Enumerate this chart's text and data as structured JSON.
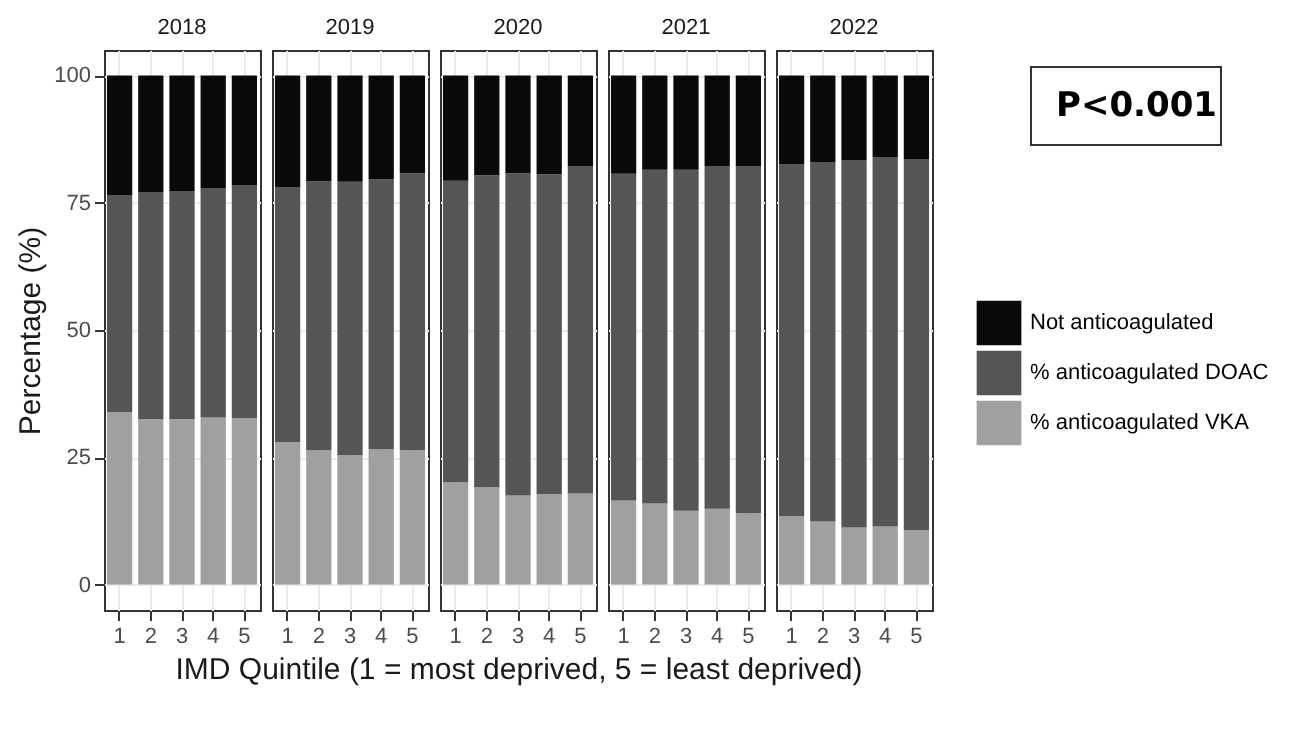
{
  "chart_data": [
    {
      "type": "bar",
      "title": "2018",
      "ylabel": "Percentage (%)",
      "stacked": true,
      "categories": [
        "1",
        "2",
        "3",
        "4",
        "5"
      ],
      "ylim": [
        -5,
        105
      ],
      "yticks": [
        0,
        25,
        50,
        75,
        100
      ],
      "grid": true,
      "legend": false,
      "series": [
        {
          "color": "#a0a0a0",
          "values": [
            33.9,
            32.5,
            32.5,
            32.8,
            32.7
          ]
        },
        {
          "color": "#555555",
          "values": [
            42.6,
            44.6,
            44.8,
            45.0,
            45.8
          ]
        },
        {
          "color": "#0a0a0a",
          "values": [
            23.5,
            22.9,
            22.7,
            22.2,
            21.5
          ]
        }
      ]
    },
    {
      "type": "bar",
      "title": "2019",
      "stacked": true,
      "categories": [
        "1",
        "2",
        "3",
        "4",
        "5"
      ],
      "ylim": [
        -5,
        105
      ],
      "yticks": [
        0,
        25,
        50,
        75,
        100
      ],
      "grid": true,
      "legend": false,
      "tick_labels": "x",
      "series": [
        {
          "color": "#a0a0a0",
          "values": [
            28.0,
            26.4,
            25.4,
            26.6,
            26.4
          ]
        },
        {
          "color": "#555555",
          "values": [
            50.0,
            52.8,
            53.7,
            53.0,
            54.4
          ]
        },
        {
          "color": "#0a0a0a",
          "values": [
            22.0,
            20.8,
            20.9,
            20.4,
            19.2
          ]
        }
      ]
    },
    {
      "type": "bar",
      "title": "2020",
      "xlabel": "IMD Quintile (1 = most deprived, 5 = least deprived)",
      "stacked": true,
      "categories": [
        "1",
        "2",
        "3",
        "4",
        "5"
      ],
      "ylim": [
        -5,
        105
      ],
      "yticks": [
        0,
        25,
        50,
        75,
        100
      ],
      "grid": true,
      "legend": false,
      "tick_labels": "x",
      "series": [
        {
          "color": "#a0a0a0",
          "values": [
            20.1,
            19.1,
            17.5,
            17.8,
            17.9
          ]
        },
        {
          "color": "#555555",
          "values": [
            59.2,
            61.3,
            63.3,
            62.8,
            64.3
          ]
        },
        {
          "color": "#0a0a0a",
          "values": [
            20.7,
            19.6,
            19.2,
            19.4,
            17.8
          ]
        }
      ]
    },
    {
      "type": "bar",
      "title": "2021",
      "stacked": true,
      "categories": [
        "1",
        "2",
        "3",
        "4",
        "5"
      ],
      "ylim": [
        -5,
        105
      ],
      "yticks": [
        0,
        25,
        50,
        75,
        100
      ],
      "grid": true,
      "legend": false,
      "tick_labels": "x",
      "series": [
        {
          "color": "#a0a0a0",
          "values": [
            16.5,
            15.9,
            14.5,
            14.9,
            14.0
          ]
        },
        {
          "color": "#555555",
          "values": [
            64.2,
            65.6,
            67.0,
            67.3,
            68.2
          ]
        },
        {
          "color": "#0a0a0a",
          "values": [
            19.3,
            18.5,
            18.5,
            17.8,
            17.8
          ]
        }
      ]
    },
    {
      "type": "bar",
      "title": "2022",
      "stacked": true,
      "categories": [
        "1",
        "2",
        "3",
        "4",
        "5"
      ],
      "ylim": [
        -5,
        105
      ],
      "yticks": [
        0,
        25,
        50,
        75,
        100
      ],
      "grid": true,
      "legend": "right",
      "tick_labels": "x",
      "annotations": [
        "P<0.001"
      ],
      "series": [
        {
          "name": "% anticoagulated VKA",
          "color": "#a0a0a0",
          "values": [
            13.4,
            12.4,
            11.2,
            11.4,
            10.7
          ]
        },
        {
          "name": "% anticoagulated DOAC",
          "color": "#555555",
          "values": [
            69.1,
            70.5,
            72.1,
            72.5,
            72.9
          ]
        },
        {
          "name": "Not anticoagulated",
          "color": "#0a0a0a",
          "values": [
            17.5,
            17.1,
            16.7,
            16.1,
            16.4
          ]
        }
      ]
    }
  ]
}
